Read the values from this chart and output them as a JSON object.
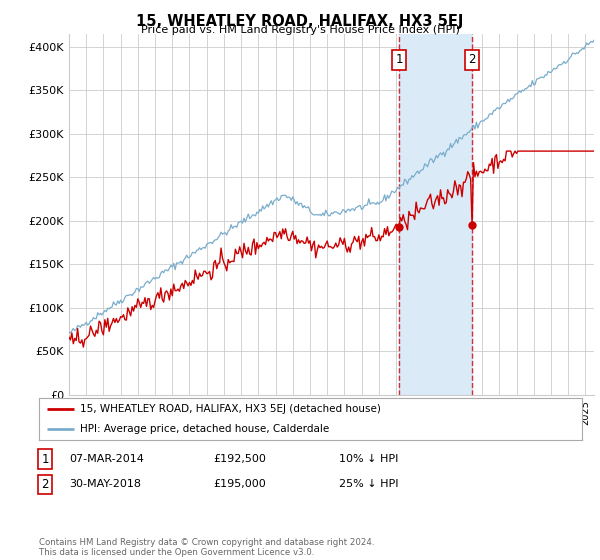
{
  "title": "15, WHEATLEY ROAD, HALIFAX, HX3 5EJ",
  "subtitle": "Price paid vs. HM Land Registry's House Price Index (HPI)",
  "ylabel_ticks": [
    "£0",
    "£50K",
    "£100K",
    "£150K",
    "£200K",
    "£250K",
    "£300K",
    "£350K",
    "£400K"
  ],
  "ylim": [
    0,
    415000
  ],
  "xlim_start": 1995.0,
  "xlim_end": 2025.5,
  "sale1_date": 2014.18,
  "sale1_price": 192500,
  "sale1_label": "1",
  "sale2_date": 2018.42,
  "sale2_price": 195000,
  "sale2_label": "2",
  "highlight_color": "#daeaf7",
  "highlight_border": "#cc0000",
  "red_line_color": "#cc0000",
  "blue_line_color": "#7aadcc",
  "legend_line1": "15, WHEATLEY ROAD, HALIFAX, HX3 5EJ (detached house)",
  "legend_line2": "HPI: Average price, detached house, Calderdale",
  "table_row1": [
    "1",
    "07-MAR-2014",
    "£192,500",
    "10% ↓ HPI"
  ],
  "table_row2": [
    "2",
    "30-MAY-2018",
    "£195,000",
    "25% ↓ HPI"
  ],
  "footer": "Contains HM Land Registry data © Crown copyright and database right 2024.\nThis data is licensed under the Open Government Licence v3.0.",
  "background_color": "#ffffff",
  "grid_color": "#cccccc"
}
